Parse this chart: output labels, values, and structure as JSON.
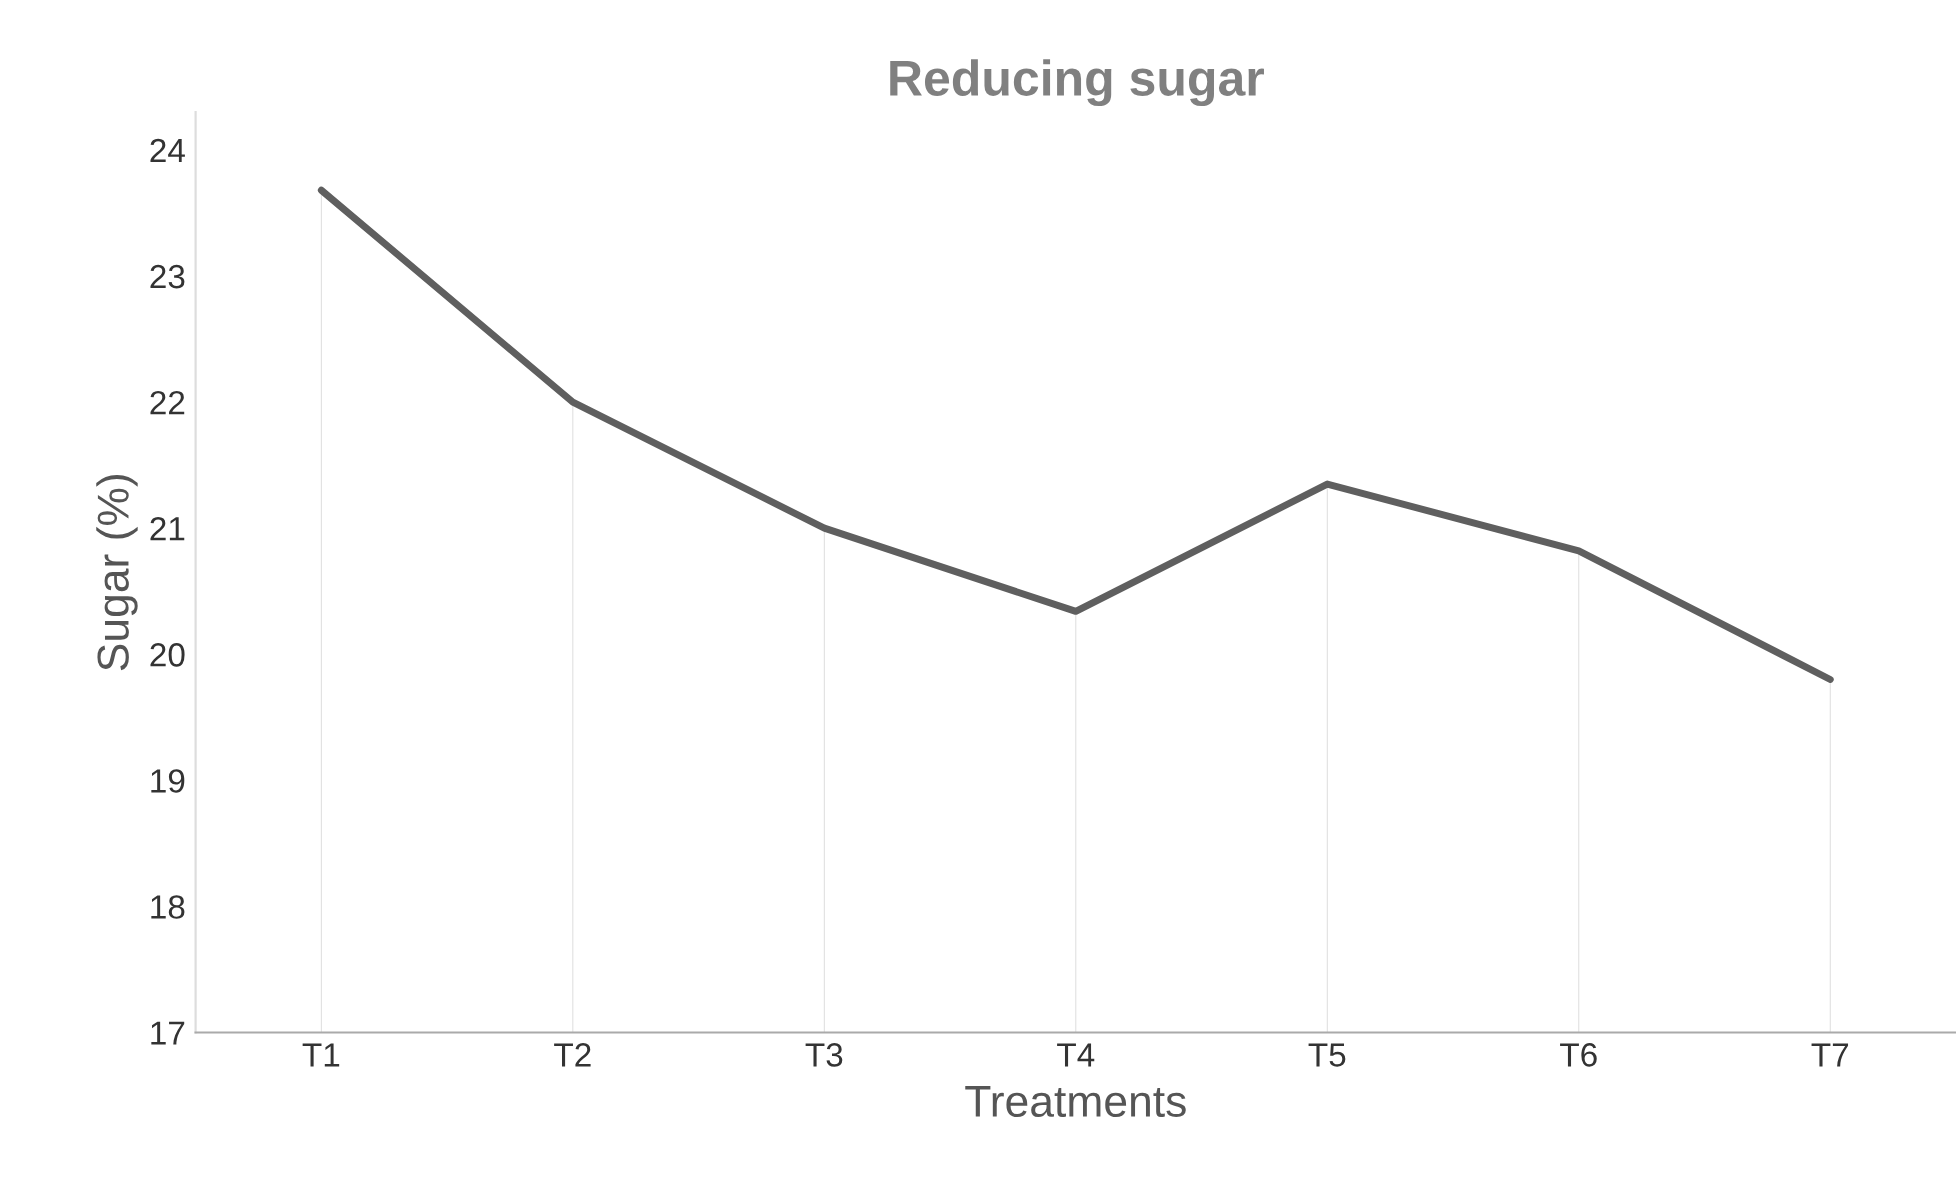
{
  "chart_data": {
    "type": "line",
    "title": "Reducing sugar",
    "xlabel": "Treatments",
    "ylabel": "Sugar (%)",
    "categories": [
      "T1",
      "T2",
      "T3",
      "T4",
      "T5",
      "T6",
      "T7"
    ],
    "series": [
      {
        "type": "bar",
        "color": "#dddddd",
        "values": [
          23.68,
          22.0,
          21.0,
          20.34,
          21.35,
          20.82,
          19.8
        ]
      },
      {
        "color": "#5f5f5f",
        "values": [
          23.68,
          22.0,
          21.0,
          20.34,
          21.35,
          20.82,
          19.8
        ]
      }
    ],
    "ylim": [
      17,
      24.3
    ],
    "yticks": [
      17,
      18,
      19,
      20,
      21,
      22,
      23,
      24
    ],
    "marker": "none",
    "line_style": "solid"
  }
}
